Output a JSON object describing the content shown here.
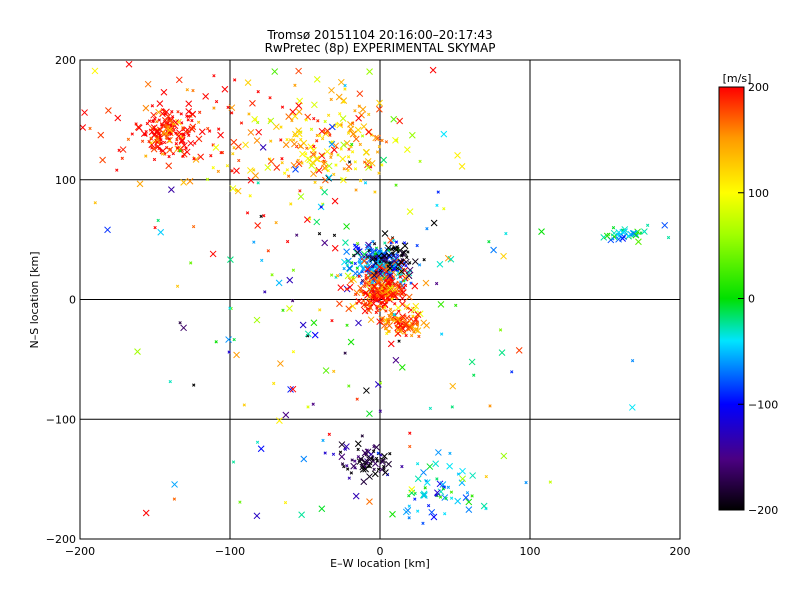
{
  "chart_data": {
    "type": "scatter",
    "title": "Tromsø 20151104 20:16:00–20:17:43",
    "subtitle": "RwPretec (8p) EXPERIMENTAL SKYMAP",
    "xlabel": "E–W location [km]",
    "ylabel": "N–S location [km]",
    "xlim": [
      -200,
      200
    ],
    "ylim": [
      -200,
      200
    ],
    "xticks": [
      -200,
      -100,
      0,
      100,
      200
    ],
    "yticks": [
      -200,
      -100,
      0,
      100,
      200
    ],
    "grid": true,
    "marker": "cross",
    "colorbar": {
      "label": "[m/s]",
      "min": -200,
      "max": 200,
      "ticks": [
        200,
        100,
        0,
        -100,
        -200
      ],
      "colormap": "rainbow (black-purple-blue-cyan-green-yellow-red)"
    },
    "clusters": [
      {
        "x": -140,
        "y": 140,
        "spread_x": 10,
        "spread_y": 10,
        "velocity": 200,
        "count": 160
      },
      {
        "x": -40,
        "y": 128,
        "spread_x": 28,
        "spread_y": 20,
        "velocity": 125,
        "count": 170
      },
      {
        "x": -110,
        "y": 140,
        "spread_x": 60,
        "spread_y": 35,
        "velocity": 190,
        "count": 110
      },
      {
        "x": 0,
        "y": 28,
        "spread_x": 10,
        "spread_y": 9,
        "velocity": -60,
        "count": 220
      },
      {
        "x": 0,
        "y": 8,
        "spread_x": 9,
        "spread_y": 10,
        "velocity": 180,
        "count": 230
      },
      {
        "x": 15,
        "y": -20,
        "spread_x": 8,
        "spread_y": 6,
        "velocity": 160,
        "count": 90
      },
      {
        "x": 8,
        "y": 35,
        "spread_x": 10,
        "spread_y": 8,
        "velocity": -200,
        "count": 60
      },
      {
        "x": 165,
        "y": 55,
        "spread_x": 10,
        "spread_y": 4,
        "velocity": -20,
        "count": 35
      },
      {
        "x": -10,
        "y": -135,
        "spread_x": 10,
        "spread_y": 8,
        "velocity": -180,
        "count": 70
      },
      {
        "x": 40,
        "y": -165,
        "spread_x": 15,
        "spread_y": 15,
        "velocity": -40,
        "count": 60
      },
      {
        "x": -30,
        "y": 0,
        "spread_x": 60,
        "spread_y": 90,
        "velocity": 0,
        "count": 180
      }
    ]
  }
}
